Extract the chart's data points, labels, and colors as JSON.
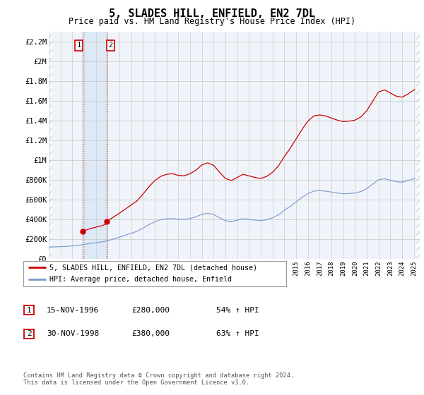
{
  "title": "5, SLADES HILL, ENFIELD, EN2 7DL",
  "subtitle": "Price paid vs. HM Land Registry's House Price Index (HPI)",
  "ylim": [
    0,
    2300000
  ],
  "yticks": [
    0,
    200000,
    400000,
    600000,
    800000,
    1000000,
    1200000,
    1400000,
    1600000,
    1800000,
    2000000,
    2200000
  ],
  "ytick_labels": [
    "£0",
    "£200K",
    "£400K",
    "£600K",
    "£800K",
    "£1M",
    "£1.2M",
    "£1.4M",
    "£1.6M",
    "£1.8M",
    "£2M",
    "£2.2M"
  ],
  "sale1_date": 1996.88,
  "sale1_price": 280000,
  "sale1_label": "1",
  "sale2_date": 1998.92,
  "sale2_price": 380000,
  "sale2_label": "2",
  "hpi_color": "#7799cc",
  "sale_color": "#cc0000",
  "dot_color": "#cc0000",
  "bg_color": "#f0f4fa",
  "legend_label_sale": "5, SLADES HILL, ENFIELD, EN2 7DL (detached house)",
  "legend_label_hpi": "HPI: Average price, detached house, Enfield",
  "table_row1": [
    "1",
    "15-NOV-1996",
    "£280,000",
    "54% ↑ HPI"
  ],
  "table_row2": [
    "2",
    "30-NOV-1998",
    "£380,000",
    "63% ↑ HPI"
  ],
  "footnote": "Contains HM Land Registry data © Crown copyright and database right 2024.\nThis data is licensed under the Open Government Licence v3.0.",
  "xmin": 1994.0,
  "xmax": 2025.5,
  "hpi_key_points": [
    [
      1994.0,
      118000
    ],
    [
      1994.5,
      120000
    ],
    [
      1995.0,
      122000
    ],
    [
      1995.5,
      125000
    ],
    [
      1996.0,
      130000
    ],
    [
      1996.5,
      135000
    ],
    [
      1997.0,
      145000
    ],
    [
      1997.5,
      155000
    ],
    [
      1998.0,
      163000
    ],
    [
      1998.5,
      170000
    ],
    [
      1999.0,
      182000
    ],
    [
      1999.5,
      200000
    ],
    [
      2000.0,
      218000
    ],
    [
      2000.5,
      238000
    ],
    [
      2001.0,
      258000
    ],
    [
      2001.5,
      278000
    ],
    [
      2002.0,
      310000
    ],
    [
      2002.5,
      345000
    ],
    [
      2003.0,
      375000
    ],
    [
      2003.5,
      395000
    ],
    [
      2004.0,
      405000
    ],
    [
      2004.5,
      408000
    ],
    [
      2005.0,
      400000
    ],
    [
      2005.5,
      398000
    ],
    [
      2006.0,
      408000
    ],
    [
      2006.5,
      425000
    ],
    [
      2007.0,
      450000
    ],
    [
      2007.5,
      460000
    ],
    [
      2008.0,
      448000
    ],
    [
      2008.5,
      415000
    ],
    [
      2009.0,
      385000
    ],
    [
      2009.5,
      375000
    ],
    [
      2010.0,
      390000
    ],
    [
      2010.5,
      405000
    ],
    [
      2011.0,
      398000
    ],
    [
      2011.5,
      390000
    ],
    [
      2012.0,
      385000
    ],
    [
      2012.5,
      395000
    ],
    [
      2013.0,
      415000
    ],
    [
      2013.5,
      445000
    ],
    [
      2014.0,
      490000
    ],
    [
      2014.5,
      530000
    ],
    [
      2015.0,
      575000
    ],
    [
      2015.5,
      620000
    ],
    [
      2016.0,
      660000
    ],
    [
      2016.5,
      685000
    ],
    [
      2017.0,
      690000
    ],
    [
      2017.5,
      685000
    ],
    [
      2018.0,
      675000
    ],
    [
      2018.5,
      665000
    ],
    [
      2019.0,
      658000
    ],
    [
      2019.5,
      660000
    ],
    [
      2020.0,
      665000
    ],
    [
      2020.5,
      680000
    ],
    [
      2021.0,
      710000
    ],
    [
      2021.5,
      755000
    ],
    [
      2022.0,
      800000
    ],
    [
      2022.5,
      810000
    ],
    [
      2023.0,
      795000
    ],
    [
      2023.5,
      780000
    ],
    [
      2024.0,
      775000
    ],
    [
      2024.5,
      790000
    ],
    [
      2025.0,
      810000
    ]
  ]
}
